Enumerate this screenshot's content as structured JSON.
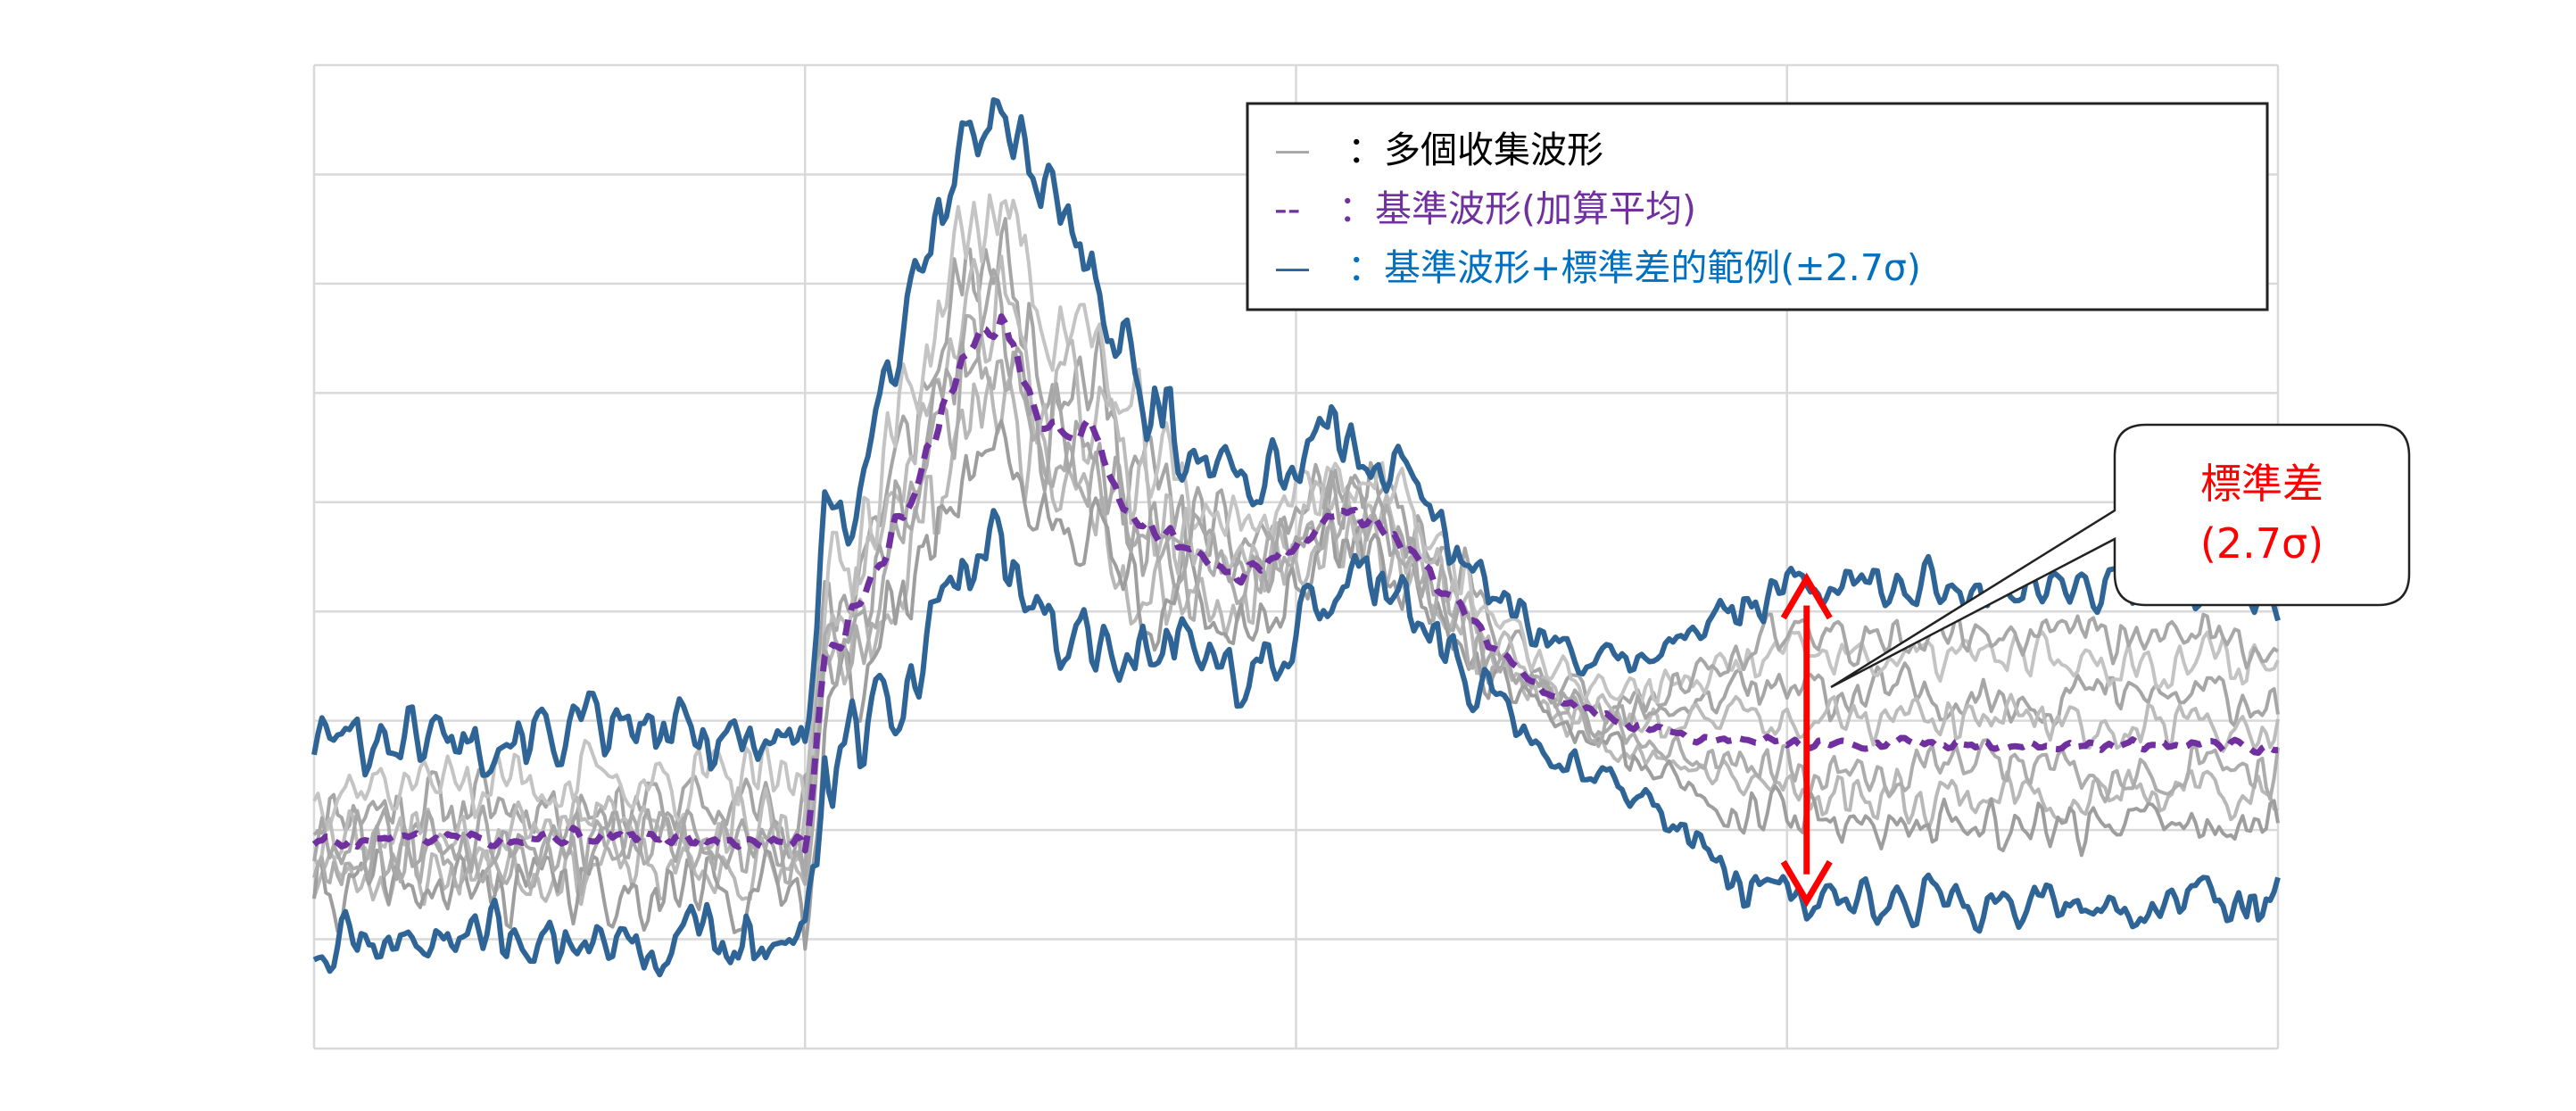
{
  "chart_data": {
    "type": "line",
    "title": "",
    "xlabel": "",
    "ylabel": "",
    "xlim": [
      0,
      100
    ],
    "ylim": [
      0,
      9
    ],
    "grid": true,
    "legend_placement": "top-right",
    "colors": {
      "collected": "#b5b5b5",
      "reference": "#7030a0",
      "band": "#2e6496",
      "grid": "#d9d9d9",
      "callout_text": "#ff0000",
      "arrow": "#ff0000",
      "legend_collected_text": "#000000",
      "legend_reference_text": "#7030a0",
      "legend_band_text": "#0070c0"
    },
    "legend": [
      {
        "swatch": "—",
        "label": "：多個收集波形",
        "style": "solid-gray"
      },
      {
        "swatch": "--",
        "label": "：基準波形(加算平均)",
        "style": "dashed-purple"
      },
      {
        "swatch": "—",
        "label": "：基準波形+標準差的範例(±2.7σ)",
        "style": "solid-blue"
      }
    ],
    "annotation": {
      "line1": "標準差",
      "line2": "(2.7σ)",
      "arrow_x": 76,
      "arrow_from_y": 4.3,
      "arrow_to_y": 1.35
    },
    "reference_profile": [
      [
        0,
        1.9
      ],
      [
        12,
        1.95
      ],
      [
        25,
        1.9
      ],
      [
        25.3,
        2.3
      ],
      [
        26,
        3.6
      ],
      [
        27,
        3.8
      ],
      [
        30,
        4.9
      ],
      [
        33,
        6.3
      ],
      [
        35,
        6.7
      ],
      [
        37,
        5.7
      ],
      [
        40,
        5.6
      ],
      [
        41,
        5.0
      ],
      [
        44,
        4.6
      ],
      [
        47,
        4.3
      ],
      [
        50,
        4.6
      ],
      [
        51.5,
        4.9
      ],
      [
        53,
        4.9
      ],
      [
        55,
        4.7
      ],
      [
        57,
        4.3
      ],
      [
        60,
        3.7
      ],
      [
        63,
        3.2
      ],
      [
        66,
        3.0
      ],
      [
        70,
        2.85
      ],
      [
        75,
        2.8
      ],
      [
        100,
        2.75
      ]
    ],
    "band_halfwidth": [
      [
        0,
        0.95
      ],
      [
        25,
        0.95
      ],
      [
        27,
        1.1
      ],
      [
        30,
        1.7
      ],
      [
        34,
        2.0
      ],
      [
        37,
        2.0
      ],
      [
        44,
        1.0
      ],
      [
        55,
        0.6
      ],
      [
        60,
        0.5
      ],
      [
        66,
        0.5
      ],
      [
        70,
        0.9
      ],
      [
        73,
        1.3
      ],
      [
        76,
        1.45
      ],
      [
        100,
        1.45
      ]
    ],
    "collected_offsets": [
      {
        "base": 0.35,
        "late_dev": 0.0,
        "seed": 11
      },
      {
        "base": -0.35,
        "late_dev": 0.0,
        "seed": 23
      },
      {
        "base": 0.6,
        "late_dev": 0.0,
        "seed": 37
      },
      {
        "base": -0.55,
        "late_dev": 0.0,
        "seed": 41
      },
      {
        "base": 0.15,
        "late_dev": 0.0,
        "seed": 53
      },
      {
        "base": -0.15,
        "late_dev": 0.0,
        "seed": 67
      },
      {
        "base": 0.0,
        "late_dev": 1.0,
        "seed": 79
      }
    ]
  }
}
